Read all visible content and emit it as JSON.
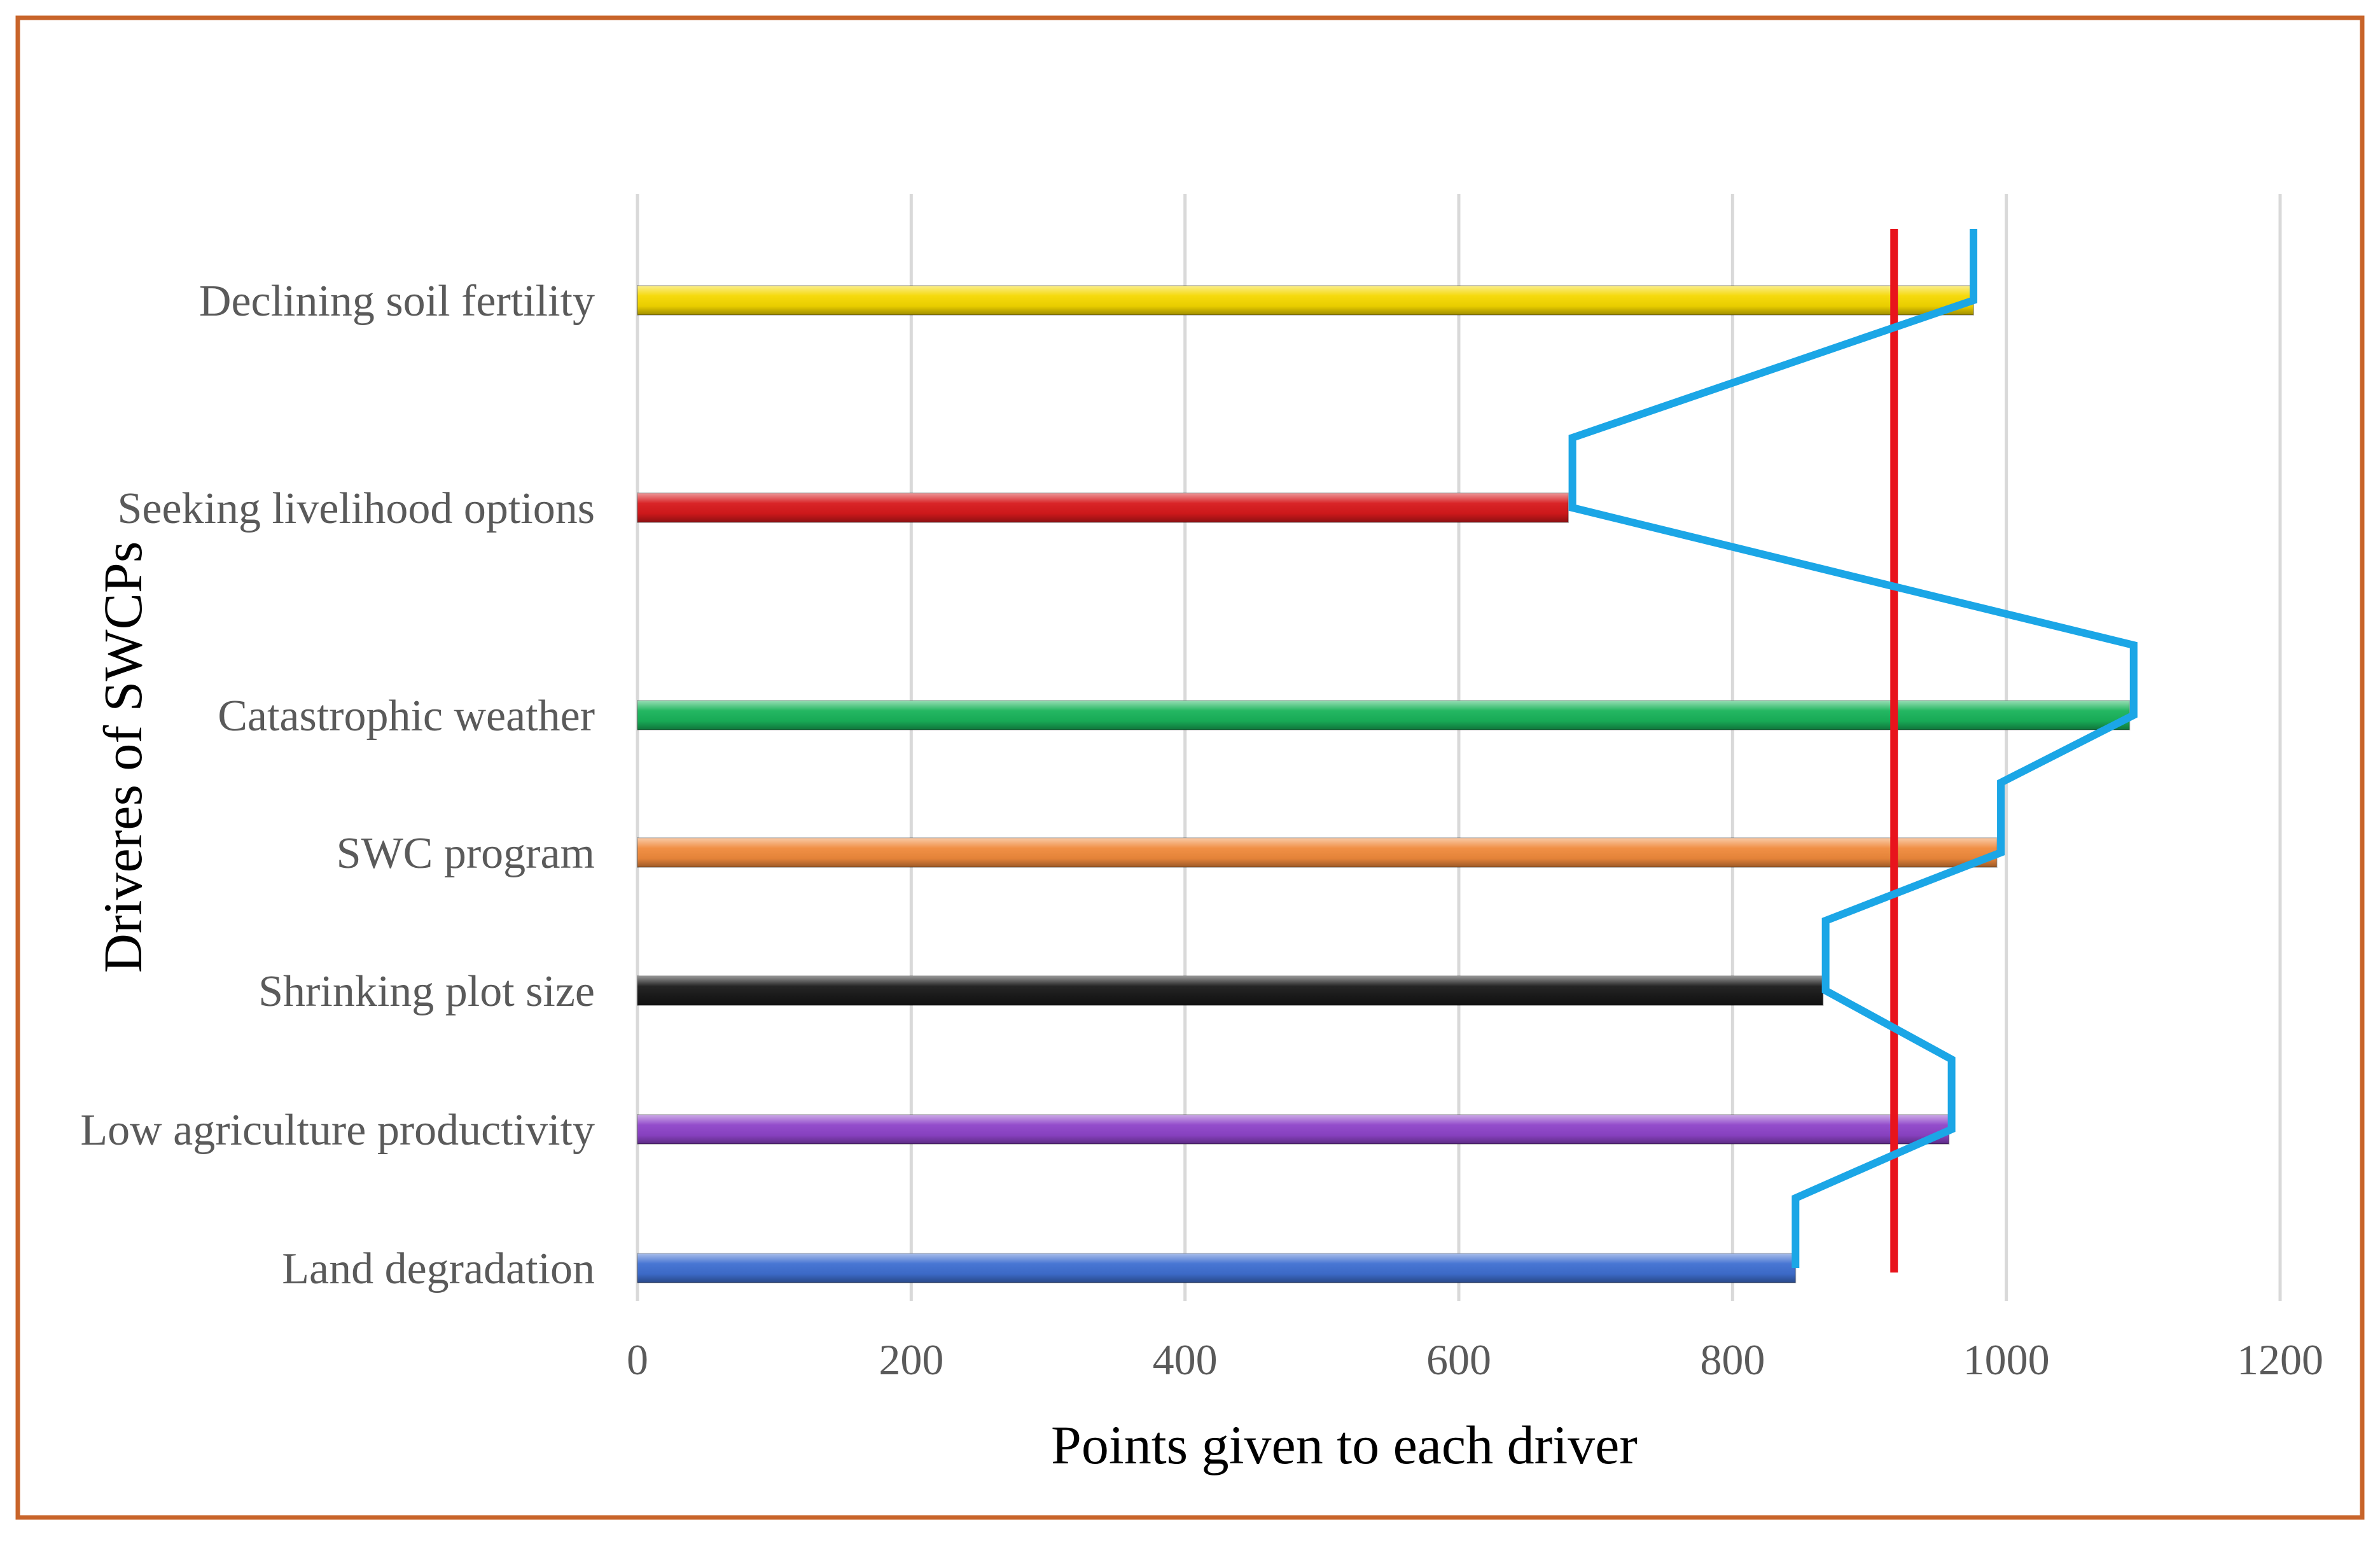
{
  "chart_data": {
    "type": "bar",
    "orientation": "horizontal",
    "title": "",
    "xlabel": "Points given to each driver",
    "ylabel": "Driveres of SWCPs",
    "xlim": [
      0,
      1200
    ],
    "xticks": [
      0,
      200,
      400,
      600,
      800,
      1000,
      1200
    ],
    "grid": "vertical",
    "categories": [
      "Declining soil fertility",
      "Seeking  livelihood options",
      "Catastrophic weather",
      "SWC program",
      "Shrinking plot size",
      "Low agriculture productivity",
      "Land degradation"
    ],
    "values": [
      976,
      680,
      1090,
      993,
      866,
      958,
      846
    ],
    "bar_colors": [
      "#f5d800",
      "#d7191c",
      "#19b35a",
      "#f08a3c",
      "#1a1a1a",
      "#8e44c9",
      "#3f6fd1"
    ],
    "line_series": {
      "color": "#1ba6e6",
      "points": [
        {
          "category": "Declining soil fertility",
          "value": 976
        },
        {
          "category": "Seeking  livelihood options",
          "value": 683
        },
        {
          "category": "Catastrophic weather",
          "value": 1093
        },
        {
          "category": "SWC program",
          "value": 996
        },
        {
          "category": "Shrinking plot size",
          "value": 868
        },
        {
          "category": "Low agriculture productivity",
          "value": 960
        },
        {
          "category": "Land degradation",
          "value": 846
        }
      ]
    },
    "reference_line": {
      "value": 918,
      "color": "#e8141c"
    },
    "frame_color": "#c8642a"
  }
}
